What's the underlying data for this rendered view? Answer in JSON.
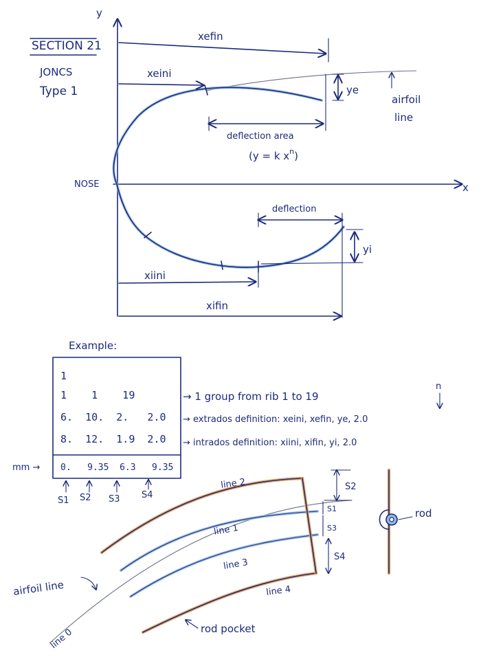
{
  "top_diagram": {
    "section_title": "SECTION 21",
    "joncs_label": "JONCS",
    "type_label": "Type 1",
    "axis_y": "y",
    "axis_x": "x",
    "nose_label": "NOSE",
    "xefin_label": "xefin",
    "xeini_label": "xeini",
    "ye_label": "ye",
    "airfoil_line_label_1": "airfoil",
    "airfoil_line_label_2": "line",
    "deflection_area_label": "deflection area",
    "formula_label": "(y = k x",
    "formula_exp": "n",
    "formula_close": ")",
    "deflection_label": "deflection",
    "yi_label": "yi",
    "xiini_label": "xiini",
    "xifin_label": "xifin"
  },
  "example": {
    "title": "Example:",
    "rows": [
      "1",
      "1    1    19",
      "6.  10.  2.   2.0",
      "8.  12.  1.9  2.0"
    ],
    "mm_label": "mm →",
    "spacing_row": "0.   9.35  6.3   9.35",
    "notes": [
      "→ 1 group from rib 1 to 19",
      "→ extrados definition: xeini, xefin, ye, 2.0",
      "→ intrados definition: xiini, xifin, yi, 2.0"
    ],
    "n_label": "n",
    "s_labels": [
      "S1",
      "S2",
      "S3",
      "S4"
    ]
  },
  "bottom_diagram": {
    "line_labels": [
      "line 0",
      "line 1",
      "line 2",
      "line 3",
      "line 4"
    ],
    "s_labels": [
      "S2",
      "S1",
      "S3",
      "S4"
    ],
    "airfoil_line_label": "airfoil line",
    "rod_pocket_label": "rod pocket",
    "rod_label": "rod"
  },
  "colors": {
    "ink": "#1c2a7a",
    "blue_highlight": "#8fb8e3",
    "orange_highlight": "#e7a35a"
  }
}
